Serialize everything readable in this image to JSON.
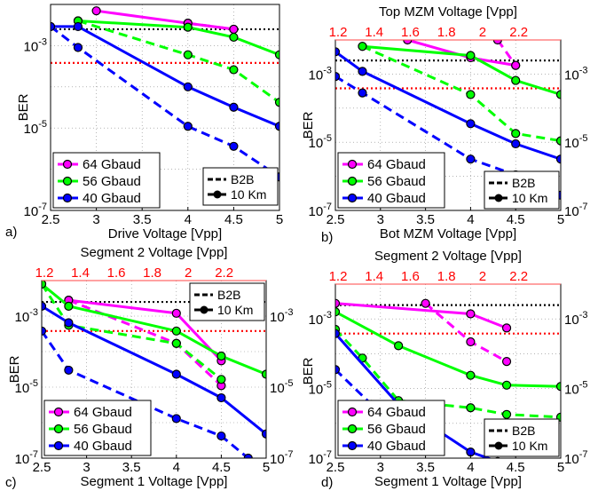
{
  "chart_data": [
    {
      "id": "a",
      "type": "line",
      "panel_label": "a)",
      "title": "",
      "top_xlabel": "",
      "xlabel": "Drive Voltage [Vpp]",
      "ylabel": "BER",
      "y_scale": "log",
      "xlim": [
        2.5,
        5
      ],
      "ylim": [
        1e-07,
        0.01
      ],
      "x_ticks": [
        "2.5",
        "3",
        "3.5",
        "4",
        "4.5",
        "5"
      ],
      "y_ticks_left": [
        "10^-3",
        "10^-5",
        "10^-7"
      ],
      "y_ticks_right": [],
      "top_ticks": [],
      "grid": "dotted",
      "reference_lines": [
        {
          "style": "black-dotted",
          "y": 0.0025
        },
        {
          "style": "red-dotted",
          "y": 0.00038
        }
      ],
      "legend_series": [
        "64 Gbaud",
        "56 Gbaud",
        "40 Gbaud"
      ],
      "legend_styles": [
        "B2B",
        "10 Km"
      ],
      "series": [
        {
          "name": "64 Gbaud",
          "color": "#ff00ff",
          "style": "solid",
          "x": [
            3.0,
            4.0,
            4.5
          ],
          "y": [
            0.007,
            0.0035,
            0.0025
          ]
        },
        {
          "name": "64 Gbaud",
          "color": "#ff00ff",
          "style": "dashed",
          "x": [
            4.0,
            4.5
          ],
          "y": [
            0.0035,
            0.0025
          ]
        },
        {
          "name": "56 Gbaud",
          "color": "#00ff00",
          "style": "solid",
          "x": [
            2.8,
            4.0,
            4.5,
            5.0
          ],
          "y": [
            0.004,
            0.0028,
            0.0016,
            0.0006
          ]
        },
        {
          "name": "56 Gbaud",
          "color": "#00ff00",
          "style": "dashed",
          "x": [
            2.8,
            4.0,
            4.5,
            5.0
          ],
          "y": [
            0.004,
            0.0006,
            0.00026,
            4.2e-05
          ]
        },
        {
          "name": "40 Gbaud",
          "color": "#0000ff",
          "style": "solid",
          "x": [
            2.5,
            2.8,
            4.0,
            4.5,
            5.0
          ],
          "y": [
            0.0029,
            0.0029,
            0.0001,
            3.2e-05,
            1.1e-05
          ]
        },
        {
          "name": "40 Gbaud",
          "color": "#0000ff",
          "style": "dashed",
          "x": [
            2.5,
            2.8,
            4.0,
            4.5,
            5.0
          ],
          "y": [
            0.0029,
            0.0009,
            1.1e-05,
            3.6e-06,
            6.5e-07
          ]
        }
      ]
    },
    {
      "id": "b",
      "type": "line",
      "panel_label": "b)",
      "title": "Top MZM Voltage [Vpp]",
      "top_xlabel": "",
      "xlabel": "Bot MZM Voltage [Vpp]",
      "ylabel": "BER",
      "y_scale": "log",
      "xlim": [
        2.5,
        5
      ],
      "ylim": [
        1e-07,
        0.01
      ],
      "x_ticks": [
        "2.5",
        "3",
        "3.5",
        "4",
        "4.5",
        "5"
      ],
      "y_ticks_left": [
        "10^-3",
        "10^-5",
        "10^-7"
      ],
      "y_ticks_right": [
        "10^-3",
        "10^-5",
        "10^-7"
      ],
      "top_ticks": [
        "1.2",
        "1.4",
        "1.6",
        "1.8",
        "2",
        "2.2"
      ],
      "grid": "dotted",
      "reference_lines": [
        {
          "style": "black-dotted",
          "y": 0.0025
        },
        {
          "style": "red-dotted",
          "y": 0.00038
        }
      ],
      "legend_series": [
        "64 Gbaud",
        "56 Gbaud",
        "40 Gbaud"
      ],
      "legend_styles": [
        "B2B",
        "10 Km"
      ],
      "series": [
        {
          "name": "64 Gbaud",
          "color": "#ff00ff",
          "style": "solid",
          "x": [
            3.3,
            4.0,
            4.5
          ],
          "y": [
            0.01,
            0.003,
            0.0018
          ]
        },
        {
          "name": "64 Gbaud",
          "color": "#ff00ff",
          "style": "dashed",
          "x": [
            4.3,
            4.5
          ],
          "y": [
            0.01,
            0.0018
          ]
        },
        {
          "name": "56 Gbaud",
          "color": "#00ff00",
          "style": "solid",
          "x": [
            2.8,
            4.0,
            4.5,
            5.0
          ],
          "y": [
            0.0065,
            0.0035,
            0.00065,
            0.00025
          ]
        },
        {
          "name": "56 Gbaud",
          "color": "#00ff00",
          "style": "dashed",
          "x": [
            2.8,
            4.0,
            4.5,
            5.0
          ],
          "y": [
            0.0065,
            0.00025,
            1.8e-05,
            1.1e-05
          ]
        },
        {
          "name": "40 Gbaud",
          "color": "#0000ff",
          "style": "solid",
          "x": [
            2.5,
            2.8,
            4.0,
            4.5,
            5.0
          ],
          "y": [
            0.0045,
            0.0012,
            3.5e-05,
            9e-06,
            3.2e-06
          ]
        },
        {
          "name": "40 Gbaud",
          "color": "#0000ff",
          "style": "dashed",
          "x": [
            2.5,
            2.8,
            4.0,
            4.5,
            5.0
          ],
          "y": [
            0.00085,
            0.00028,
            3.2e-06,
            1.1e-06,
            2.8e-07
          ]
        }
      ]
    },
    {
      "id": "c",
      "type": "line",
      "panel_label": "c)",
      "title": "Segment 2 Voltage [Vpp]",
      "top_xlabel": "",
      "xlabel": "Segment 1 Voltage [Vpp]",
      "ylabel": "BER",
      "y_scale": "log",
      "xlim": [
        2.5,
        5
      ],
      "ylim": [
        1e-07,
        0.01
      ],
      "x_ticks": [
        "2.5",
        "3",
        "3.5",
        "4",
        "4.5",
        "5"
      ],
      "y_ticks_left": [
        "10^-3",
        "10^-5",
        "10^-7"
      ],
      "y_ticks_right": [
        "10^-3",
        "10^-5",
        "10^-7"
      ],
      "top_ticks": [
        "1.2",
        "1.4",
        "1.6",
        "1.8",
        "2",
        "2.2"
      ],
      "grid": "dotted",
      "reference_lines": [
        {
          "style": "black-dotted",
          "y": 0.0025
        },
        {
          "style": "red-dotted",
          "y": 0.00038
        }
      ],
      "legend_series": [
        "64 Gbaud",
        "56 Gbaud",
        "40 Gbaud"
      ],
      "legend_styles": [
        "B2B",
        "10 Km"
      ],
      "series": [
        {
          "name": "64 Gbaud",
          "color": "#ff00ff",
          "style": "solid",
          "x": [
            2.8,
            4.0,
            4.5
          ],
          "y": [
            0.0028,
            0.0012,
            5.5e-05
          ]
        },
        {
          "name": "64 Gbaud",
          "color": "#ff00ff",
          "style": "dashed",
          "x": [
            2.8,
            4.0,
            4.5
          ],
          "y": [
            0.0028,
            0.00017,
            1.1e-05
          ]
        },
        {
          "name": "56 Gbaud",
          "color": "#00ff00",
          "style": "solid",
          "x": [
            2.5,
            2.8,
            4.0,
            4.5,
            5.0
          ],
          "y": [
            0.008,
            0.0019,
            0.00038,
            7.5e-05,
            2.3e-05
          ]
        },
        {
          "name": "56 Gbaud",
          "color": "#00ff00",
          "style": "dashed",
          "x": [
            2.5,
            2.8,
            4.0,
            4.5
          ],
          "y": [
            0.008,
            0.00055,
            0.00017,
            1.65e-05
          ]
        },
        {
          "name": "40 Gbaud",
          "color": "#0000ff",
          "style": "solid",
          "x": [
            2.5,
            2.8,
            4.0,
            4.5,
            5.0
          ],
          "y": [
            0.0019,
            0.00065,
            2.3e-05,
            5e-06,
            4.8e-07
          ]
        },
        {
          "name": "40 Gbaud",
          "color": "#0000ff",
          "style": "dashed",
          "x": [
            2.5,
            2.8,
            4.0,
            4.5,
            4.8
          ],
          "y": [
            0.00038,
            3e-05,
            1.3e-06,
            4.2e-07,
            1e-07
          ]
        }
      ]
    },
    {
      "id": "d",
      "type": "line",
      "panel_label": "d)",
      "title": "Segment 2 Voltage [Vpp]",
      "top_xlabel": "",
      "xlabel": "Segment 1 Voltage [Vpp]",
      "ylabel": "BER",
      "y_scale": "log",
      "xlim": [
        2.5,
        5
      ],
      "ylim": [
        1e-07,
        0.01
      ],
      "x_ticks": [
        "2.5",
        "3",
        "3.5",
        "4",
        "4.5",
        "5"
      ],
      "y_ticks_left": [
        "10^-3",
        "10^-5",
        "10^-7"
      ],
      "y_ticks_right": [
        "10^-3",
        "10^-5",
        "10^-7"
      ],
      "top_ticks": [
        "1.2",
        "1.4",
        "1.6",
        "1.8",
        "2",
        "2.2"
      ],
      "grid": "dotted",
      "reference_lines": [
        {
          "style": "black-dotted",
          "y": 0.0025
        },
        {
          "style": "red-dotted",
          "y": 0.00038
        }
      ],
      "legend_series": [
        "64 Gbaud",
        "56 Gbaud",
        "40 Gbaud"
      ],
      "legend_styles": [
        "B2B",
        "10 Km"
      ],
      "series": [
        {
          "name": "64 Gbaud",
          "color": "#ff00ff",
          "style": "solid",
          "x": [
            2.5,
            4.0,
            4.4
          ],
          "y": [
            0.0028,
            0.0014,
            0.00055
          ]
        },
        {
          "name": "64 Gbaud",
          "color": "#ff00ff",
          "style": "dashed",
          "x": [
            3.5,
            4.0,
            4.4
          ],
          "y": [
            0.0028,
            0.00022,
            6e-05
          ]
        },
        {
          "name": "56 Gbaud",
          "color": "#00ff00",
          "style": "solid",
          "x": [
            2.5,
            3.2,
            4.0,
            4.4,
            5.0
          ],
          "y": [
            0.0016,
            0.00017,
            2.4e-05,
            1.25e-05,
            1.15e-05
          ]
        },
        {
          "name": "56 Gbaud",
          "color": "#00ff00",
          "style": "dashed",
          "x": [
            2.5,
            2.8,
            3.2,
            4.0,
            4.4,
            5.0
          ],
          "y": [
            0.0005,
            7.5e-05,
            4.5e-06,
            2.8e-06,
            1.8e-06,
            1.5e-06
          ]
        },
        {
          "name": "40 Gbaud",
          "color": "#0000ff",
          "style": "solid",
          "x": [
            2.5,
            3.2,
            4.0,
            4.3
          ],
          "y": [
            0.00038,
            3.5e-06,
            1.5e-07,
            8e-08
          ]
        },
        {
          "name": "40 Gbaud",
          "color": "#0000ff",
          "style": "dashed",
          "x": [
            2.5,
            2.9
          ],
          "y": [
            3.5e-05,
            3.5e-06
          ]
        }
      ]
    }
  ]
}
